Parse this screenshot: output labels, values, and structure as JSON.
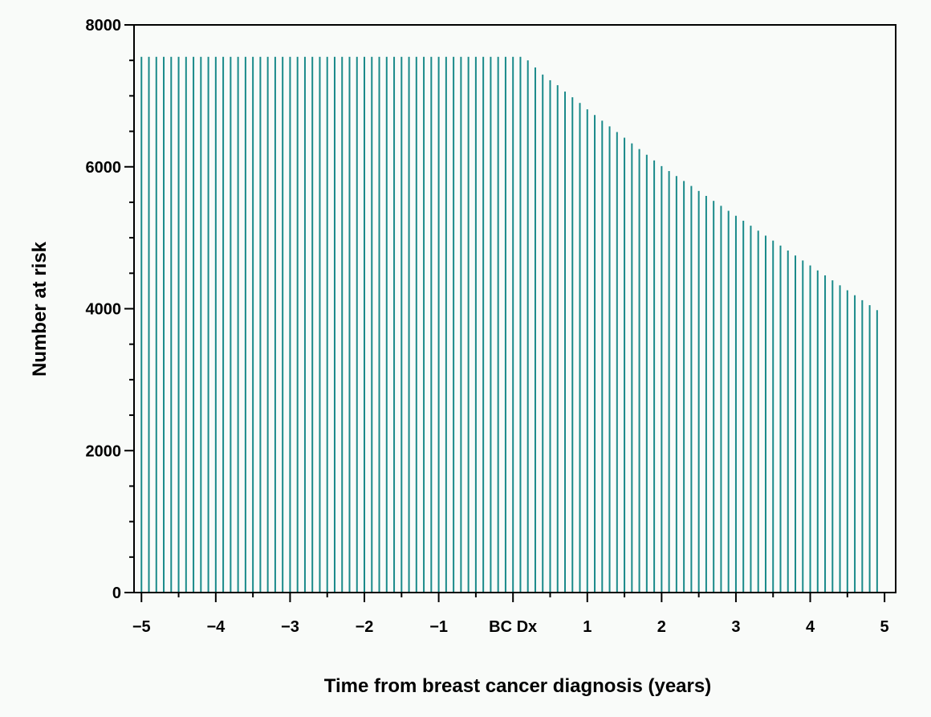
{
  "colors": {
    "background": "#f9fbf9",
    "bars": "#1a8a8a",
    "axis": "#000000"
  },
  "chart_data": {
    "type": "bar",
    "title": "",
    "xlabel": "Time from breast cancer diagnosis (years)",
    "ylabel": "Number at risk",
    "xlim": [
      -5.1,
      5.15
    ],
    "ylim": [
      0,
      8000
    ],
    "x_ticks": [
      {
        "value": -5,
        "label": "−5"
      },
      {
        "value": -4,
        "label": "−4"
      },
      {
        "value": -3,
        "label": "−3"
      },
      {
        "value": -2,
        "label": "−2"
      },
      {
        "value": -1,
        "label": "−1"
      },
      {
        "value": 0,
        "label": "BC Dx"
      },
      {
        "value": 1,
        "label": "1"
      },
      {
        "value": 2,
        "label": "2"
      },
      {
        "value": 3,
        "label": "3"
      },
      {
        "value": 4,
        "label": "4"
      },
      {
        "value": 5,
        "label": "5"
      }
    ],
    "x_minor_step": 0.5,
    "y_ticks": [
      {
        "value": 0,
        "label": "0"
      },
      {
        "value": 2000,
        "label": "2000"
      },
      {
        "value": 4000,
        "label": "4000"
      },
      {
        "value": 6000,
        "label": "6000"
      },
      {
        "value": 8000,
        "label": "8000"
      }
    ],
    "y_minor_step": 500,
    "bar_width_years": 0.1,
    "series": [
      {
        "x": [
          -5.0,
          -4.9,
          -4.8,
          -4.7,
          -4.6,
          -4.5,
          -4.4,
          -4.3,
          -4.2,
          -4.1,
          -4.0,
          -3.9,
          -3.8,
          -3.7,
          -3.6,
          -3.5,
          -3.4,
          -3.3,
          -3.2,
          -3.1,
          -3.0,
          -2.9,
          -2.8,
          -2.7,
          -2.6,
          -2.5,
          -2.4,
          -2.3,
          -2.2,
          -2.1,
          -2.0,
          -1.9,
          -1.8,
          -1.7,
          -1.6,
          -1.5,
          -1.4,
          -1.3,
          -1.2,
          -1.1,
          -1.0,
          -0.9,
          -0.8,
          -0.7,
          -0.6,
          -0.5,
          -0.4,
          -0.3,
          -0.2,
          -0.1,
          0.0,
          0.1,
          0.2,
          0.3,
          0.4,
          0.5,
          0.6,
          0.7,
          0.8,
          0.9,
          1.0,
          1.1,
          1.2,
          1.3,
          1.4,
          1.5,
          1.6,
          1.7,
          1.8,
          1.9,
          2.0,
          2.1,
          2.2,
          2.3,
          2.4,
          2.5,
          2.6,
          2.7,
          2.8,
          2.9,
          3.0,
          3.1,
          3.2,
          3.3,
          3.4,
          3.5,
          3.6,
          3.7,
          3.8,
          3.9,
          4.0,
          4.1,
          4.2,
          4.3,
          4.4,
          4.5,
          4.6,
          4.7,
          4.8,
          4.9
        ],
        "values": [
          7550,
          7550,
          7550,
          7550,
          7550,
          7550,
          7550,
          7550,
          7550,
          7550,
          7550,
          7550,
          7550,
          7550,
          7550,
          7550,
          7550,
          7550,
          7550,
          7550,
          7550,
          7550,
          7550,
          7550,
          7550,
          7550,
          7550,
          7550,
          7550,
          7550,
          7550,
          7550,
          7550,
          7550,
          7550,
          7550,
          7550,
          7550,
          7550,
          7550,
          7550,
          7550,
          7550,
          7550,
          7550,
          7550,
          7550,
          7550,
          7550,
          7550,
          7550,
          7550,
          7500,
          7400,
          7300,
          7220,
          7150,
          7060,
          6980,
          6900,
          6810,
          6730,
          6650,
          6570,
          6490,
          6410,
          6330,
          6250,
          6170,
          6090,
          6010,
          5940,
          5870,
          5800,
          5730,
          5660,
          5590,
          5520,
          5450,
          5380,
          5310,
          5240,
          5170,
          5100,
          5030,
          4960,
          4890,
          4820,
          4750,
          4680,
          4610,
          4540,
          4470,
          4400,
          4330,
          4260,
          4190,
          4120,
          4050,
          3980
        ]
      }
    ]
  }
}
